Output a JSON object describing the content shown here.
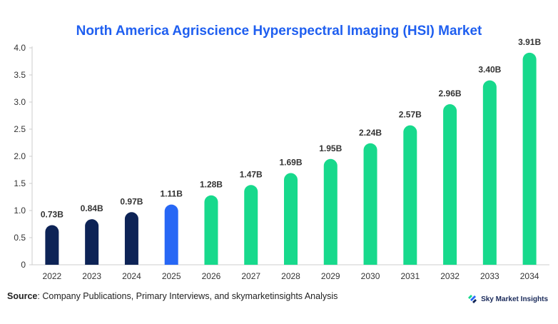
{
  "chart_data": {
    "type": "bar",
    "title": "North America Agriscience Hyperspectral Imaging (HSI) Market",
    "categories": [
      "2022",
      "2023",
      "2024",
      "2025",
      "2026",
      "2027",
      "2028",
      "2029",
      "2030",
      "2031",
      "2032",
      "2033",
      "2034"
    ],
    "values": [
      0.73,
      0.84,
      0.97,
      1.11,
      1.28,
      1.47,
      1.69,
      1.95,
      2.24,
      2.57,
      2.96,
      3.4,
      3.91
    ],
    "data_labels": [
      "0.73B",
      "0.84B",
      "0.97B",
      "1.11B",
      "1.28B",
      "1.47B",
      "1.69B",
      "1.95B",
      "2.24B",
      "2.57B",
      "2.96B",
      "3.40B",
      "3.91B"
    ],
    "bar_colors": [
      "#0d2356",
      "#0d2356",
      "#0d2356",
      "#2767f5",
      "#17d98c",
      "#17d98c",
      "#17d98c",
      "#17d98c",
      "#17d98c",
      "#17d98c",
      "#17d98c",
      "#17d98c",
      "#17d98c"
    ],
    "yticks": [
      "0",
      "0.5",
      "1.0",
      "1.5",
      "2.0",
      "2.5",
      "3.0",
      "3.5",
      "4.0"
    ],
    "ylim": [
      0,
      4.0
    ],
    "xlabel": "",
    "ylabel": "",
    "grid": false
  },
  "source": {
    "label": "Source",
    "text": ": Company Publications, Primary Interviews, and skymarketinsights Analysis"
  },
  "brand": {
    "name": "Sky Market Insights",
    "icon": "sky-market-insights-logo-icon"
  }
}
